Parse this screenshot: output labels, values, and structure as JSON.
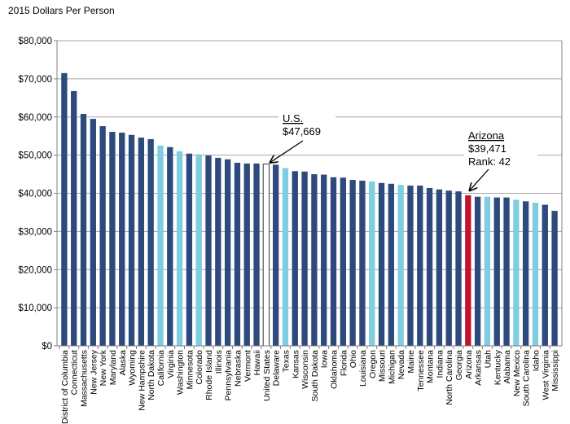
{
  "chart_data": {
    "type": "bar",
    "ylabel": "2015 Dollars Per Person",
    "ylim": [
      0,
      80000
    ],
    "yticks": [
      0,
      10000,
      20000,
      30000,
      40000,
      50000,
      60000,
      70000,
      80000
    ],
    "ytick_labels": [
      "$0",
      "$10,000",
      "$20,000",
      "$30,000",
      "$40,000",
      "$50,000",
      "$60,000",
      "$70,000",
      "$80,000"
    ],
    "grid": true,
    "categories": [
      "District of Columbia",
      "Connecticut",
      "Massachusetts",
      "New Jersey",
      "New York",
      "Maryland",
      "Alaska",
      "Wyoming",
      "New Hampshire",
      "North Dakota",
      "California",
      "Virginia",
      "Washington",
      "Minnesota",
      "Colorado",
      "Rhode Island",
      "Illinois",
      "Pennsylvania",
      "Nebraska",
      "Vermont",
      "Hawaii",
      "United States",
      "Delaware",
      "Texas",
      "Kansas",
      "Wisconsin",
      "South Dakota",
      "Iowa",
      "Oklahoma",
      "Florida",
      "Ohio",
      "Louisiana",
      "Oregon",
      "Missouri",
      "Michigan",
      "Nevada",
      "Maine",
      "Tennessee",
      "Montana",
      "Indiana",
      "North Carolina",
      "Georgia",
      "Arizona",
      "Arkansas",
      "Utah",
      "Kentucky",
      "Alabama",
      "New Mexico",
      "South Carolina",
      "Idaho",
      "West Virginia",
      "Mississippi"
    ],
    "values": [
      71500,
      66800,
      60800,
      59500,
      57600,
      56100,
      55900,
      55300,
      54600,
      54200,
      52500,
      52100,
      51000,
      50400,
      50200,
      49900,
      49300,
      48900,
      48000,
      47800,
      47800,
      47669,
      47500,
      46600,
      45800,
      45700,
      45000,
      44900,
      44200,
      44100,
      43500,
      43300,
      43100,
      42700,
      42500,
      42200,
      42000,
      42000,
      41400,
      41000,
      40700,
      40500,
      39471,
      39100,
      39100,
      38900,
      38900,
      38300,
      37900,
      37500,
      37000,
      35400
    ],
    "colors": {
      "default": "#2e4a7d",
      "western": "#7fcde0",
      "arizona": "#c0142a",
      "us_fill": "#ffffff",
      "us_stroke": "#333333"
    },
    "western_states": [
      "California",
      "Washington",
      "Colorado",
      "Texas",
      "Oregon",
      "Nevada",
      "Utah",
      "New Mexico",
      "Idaho"
    ],
    "annotations": {
      "us": {
        "title": "U.S.",
        "value": "$47,669"
      },
      "arizona": {
        "title": "Arizona",
        "value": "$39,471",
        "rank": "Rank: 42"
      }
    }
  }
}
